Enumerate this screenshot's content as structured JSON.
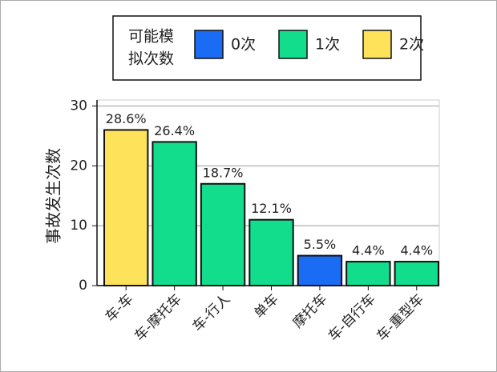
{
  "chart_data": {
    "type": "bar",
    "y_label": "事故发生次数",
    "legend": {
      "title_lines": [
        "可能模",
        "拟次数"
      ],
      "items": [
        {
          "name": "0次",
          "color": "#1a6cf5"
        },
        {
          "name": "1次",
          "color": "#12dd8c"
        },
        {
          "name": "2次",
          "color": "#fde25a"
        }
      ]
    },
    "categories": [
      "车-车",
      "车-摩托车",
      "车-行人",
      "单车",
      "摩托车",
      "车-自行车",
      "车-重型车"
    ],
    "values": [
      26,
      24,
      17,
      11,
      5,
      4,
      4
    ],
    "bar_labels": [
      "28.6%",
      "26.4%",
      "18.7%",
      "12.1%",
      "5.5%",
      "4.4%",
      "4.4%"
    ],
    "legend_item_of_bar": [
      2,
      1,
      1,
      1,
      0,
      1,
      1
    ],
    "ylim": [
      0,
      31
    ],
    "yticks": [
      0,
      10,
      20,
      30
    ],
    "grid": true
  }
}
